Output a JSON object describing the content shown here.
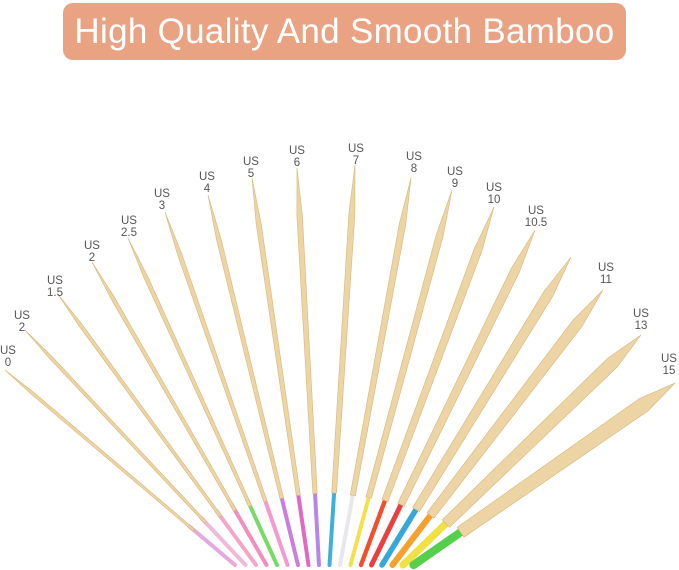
{
  "banner": {
    "title": "High Quality And Smooth Bamboo",
    "color": "#e9a383"
  },
  "needles": [
    {
      "size": "0",
      "prefix": "US",
      "cable": "#e6a9dd"
    },
    {
      "size": "2",
      "prefix": "US",
      "cable": "#f0b9d9"
    },
    {
      "size": "1.5",
      "prefix": "US",
      "cable": "#f5a6c8"
    },
    {
      "size": "2",
      "prefix": "US",
      "cable": "#f08fbd"
    },
    {
      "size": "2.5",
      "prefix": "US",
      "cable": "#7bd96a"
    },
    {
      "size": "3",
      "prefix": "US",
      "cable": "#f39ad0"
    },
    {
      "size": "4",
      "prefix": "US",
      "cable": "#c97fe0"
    },
    {
      "size": "5",
      "prefix": "US",
      "cable": "#e06ac0"
    },
    {
      "size": "6",
      "prefix": "US",
      "cable": "#b487e8"
    },
    {
      "size": "7",
      "prefix": "US",
      "cable": "#3fb0d8"
    },
    {
      "size": "8",
      "prefix": "US",
      "cable": "#e8e8ec"
    },
    {
      "size": "9",
      "prefix": "US",
      "cable": "#f3e04a"
    },
    {
      "size": "10",
      "prefix": "US",
      "cable": "#f0502e"
    },
    {
      "size": "10.5",
      "prefix": "US",
      "cable": "#e84040"
    },
    {
      "size": "",
      "prefix": "",
      "cable": "#35a8d8"
    },
    {
      "size": "11",
      "prefix": "US",
      "cable": "#f5a12c"
    },
    {
      "size": "13",
      "prefix": "US",
      "cable": "#f0e040"
    },
    {
      "size": "15",
      "prefix": "US",
      "cable": "#55d04a"
    }
  ],
  "bamboo_color": "#ecd4a4"
}
